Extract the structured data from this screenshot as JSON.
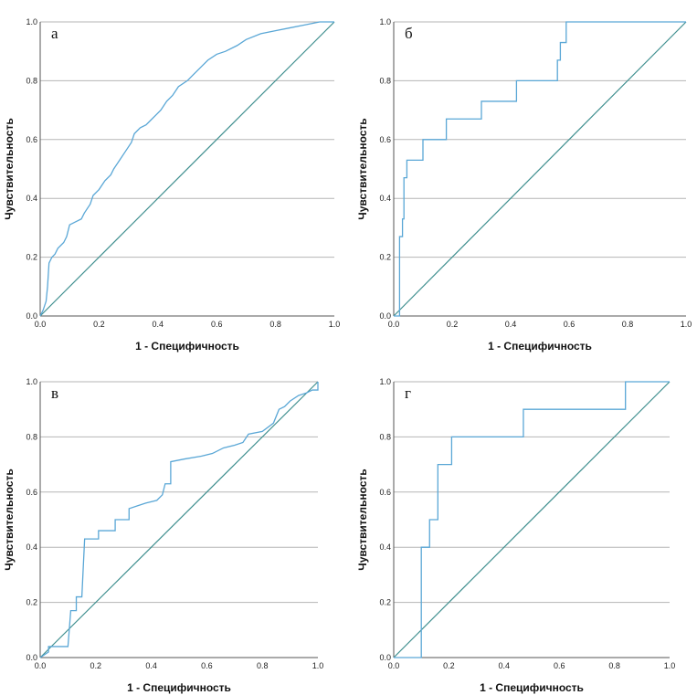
{
  "chart_data": [
    {
      "type": "line",
      "panel_label": "а",
      "xlabel": "1 - Специфичность",
      "ylabel": "Чувствительность",
      "xlim": [
        0,
        1
      ],
      "ylim": [
        0,
        1
      ],
      "xticks": [
        "0.0",
        "0.2",
        "0.4",
        "0.6",
        "0.8",
        "1.0"
      ],
      "yticks": [
        "0.0",
        "0.2",
        "0.4",
        "0.6",
        "0.8",
        "1.0"
      ],
      "grid": "horizontal",
      "reference_line": [
        [
          0,
          0
        ],
        [
          1,
          1
        ]
      ],
      "series": [
        {
          "color": "#5aa7d6",
          "points": [
            [
              0,
              0
            ],
            [
              0.01,
              0.02
            ],
            [
              0.02,
              0.05
            ],
            [
              0.025,
              0.1
            ],
            [
              0.03,
              0.18
            ],
            [
              0.04,
              0.2
            ],
            [
              0.05,
              0.21
            ],
            [
              0.06,
              0.23
            ],
            [
              0.08,
              0.25
            ],
            [
              0.09,
              0.27
            ],
            [
              0.1,
              0.31
            ],
            [
              0.12,
              0.32
            ],
            [
              0.14,
              0.33
            ],
            [
              0.15,
              0.35
            ],
            [
              0.17,
              0.38
            ],
            [
              0.18,
              0.41
            ],
            [
              0.2,
              0.43
            ],
            [
              0.22,
              0.46
            ],
            [
              0.24,
              0.48
            ],
            [
              0.25,
              0.5
            ],
            [
              0.27,
              0.53
            ],
            [
              0.29,
              0.56
            ],
            [
              0.31,
              0.59
            ],
            [
              0.32,
              0.62
            ],
            [
              0.34,
              0.64
            ],
            [
              0.36,
              0.65
            ],
            [
              0.37,
              0.66
            ],
            [
              0.39,
              0.68
            ],
            [
              0.41,
              0.7
            ],
            [
              0.43,
              0.73
            ],
            [
              0.45,
              0.75
            ],
            [
              0.47,
              0.78
            ],
            [
              0.5,
              0.8
            ],
            [
              0.52,
              0.82
            ],
            [
              0.55,
              0.85
            ],
            [
              0.57,
              0.87
            ],
            [
              0.6,
              0.89
            ],
            [
              0.63,
              0.9
            ],
            [
              0.67,
              0.92
            ],
            [
              0.7,
              0.94
            ],
            [
              0.75,
              0.96
            ],
            [
              0.8,
              0.97
            ],
            [
              0.85,
              0.98
            ],
            [
              0.9,
              0.99
            ],
            [
              0.95,
              1.0
            ],
            [
              1,
              1
            ]
          ]
        }
      ]
    },
    {
      "type": "line",
      "panel_label": "б",
      "xlabel": "1 - Специфичность",
      "ylabel": "Чувствительность",
      "xlim": [
        0,
        1
      ],
      "ylim": [
        0,
        1
      ],
      "xticks": [
        "0.0",
        "0.2",
        "0.4",
        "0.6",
        "0.8",
        "1.0"
      ],
      "yticks": [
        "0.0",
        "0.2",
        "0.4",
        "0.6",
        "0.8",
        "1.0"
      ],
      "grid": "horizontal",
      "reference_line": [
        [
          0,
          0
        ],
        [
          1,
          1
        ]
      ],
      "series": [
        {
          "color": "#5aa7d6",
          "points": [
            [
              0,
              0
            ],
            [
              0.02,
              0.0
            ],
            [
              0.02,
              0.27
            ],
            [
              0.03,
              0.27
            ],
            [
              0.03,
              0.33
            ],
            [
              0.035,
              0.33
            ],
            [
              0.035,
              0.47
            ],
            [
              0.045,
              0.47
            ],
            [
              0.045,
              0.53
            ],
            [
              0.1,
              0.53
            ],
            [
              0.1,
              0.6
            ],
            [
              0.18,
              0.6
            ],
            [
              0.18,
              0.67
            ],
            [
              0.3,
              0.67
            ],
            [
              0.3,
              0.73
            ],
            [
              0.42,
              0.73
            ],
            [
              0.42,
              0.8
            ],
            [
              0.56,
              0.8
            ],
            [
              0.56,
              0.87
            ],
            [
              0.57,
              0.87
            ],
            [
              0.57,
              0.93
            ],
            [
              0.59,
              0.93
            ],
            [
              0.59,
              1.0
            ],
            [
              1,
              1
            ]
          ]
        }
      ]
    },
    {
      "type": "line",
      "panel_label": "в",
      "xlabel": "1 - Специфичность",
      "ylabel": "Чувствительность",
      "xlim": [
        0,
        1
      ],
      "ylim": [
        0,
        1
      ],
      "xticks": [
        "0.0",
        "0.2",
        "0.4",
        "0.6",
        "0.8",
        "1.0"
      ],
      "yticks": [
        "0.0",
        "0.2",
        "0.4",
        "0.6",
        "0.8",
        "1.0"
      ],
      "grid": "horizontal",
      "reference_line": [
        [
          0,
          0
        ],
        [
          1,
          1
        ]
      ],
      "series": [
        {
          "color": "#5aa7d6",
          "points": [
            [
              0,
              0
            ],
            [
              0.03,
              0.02
            ],
            [
              0.03,
              0.04
            ],
            [
              0.1,
              0.04
            ],
            [
              0.11,
              0.17
            ],
            [
              0.13,
              0.17
            ],
            [
              0.13,
              0.22
            ],
            [
              0.15,
              0.22
            ],
            [
              0.16,
              0.43
            ],
            [
              0.21,
              0.43
            ],
            [
              0.21,
              0.46
            ],
            [
              0.27,
              0.46
            ],
            [
              0.27,
              0.5
            ],
            [
              0.32,
              0.5
            ],
            [
              0.32,
              0.54
            ],
            [
              0.35,
              0.55
            ],
            [
              0.38,
              0.56
            ],
            [
              0.42,
              0.57
            ],
            [
              0.44,
              0.59
            ],
            [
              0.45,
              0.63
            ],
            [
              0.47,
              0.63
            ],
            [
              0.47,
              0.71
            ],
            [
              0.52,
              0.72
            ],
            [
              0.58,
              0.73
            ],
            [
              0.62,
              0.74
            ],
            [
              0.66,
              0.76
            ],
            [
              0.7,
              0.77
            ],
            [
              0.73,
              0.78
            ],
            [
              0.75,
              0.81
            ],
            [
              0.8,
              0.82
            ],
            [
              0.84,
              0.85
            ],
            [
              0.86,
              0.9
            ],
            [
              0.88,
              0.91
            ],
            [
              0.9,
              0.93
            ],
            [
              0.93,
              0.95
            ],
            [
              0.96,
              0.96
            ],
            [
              0.98,
              0.97
            ],
            [
              1,
              0.97
            ],
            [
              1,
              1
            ]
          ]
        }
      ]
    },
    {
      "type": "line",
      "panel_label": "г",
      "xlabel": "1 - Специфичность",
      "ylabel": "Чувствительность",
      "xlim": [
        0,
        1
      ],
      "ylim": [
        0,
        1
      ],
      "xticks": [
        "0.0",
        "0.2",
        "0.4",
        "0.6",
        "0.8",
        "1.0"
      ],
      "yticks": [
        "0.0",
        "0.2",
        "0.4",
        "0.6",
        "0.8",
        "1.0"
      ],
      "grid": "horizontal",
      "reference_line": [
        [
          0,
          0
        ],
        [
          1,
          1
        ]
      ],
      "series": [
        {
          "color": "#5aa7d6",
          "points": [
            [
              0,
              0
            ],
            [
              0.1,
              0
            ],
            [
              0.1,
              0.4
            ],
            [
              0.13,
              0.4
            ],
            [
              0.13,
              0.5
            ],
            [
              0.16,
              0.5
            ],
            [
              0.16,
              0.7
            ],
            [
              0.21,
              0.7
            ],
            [
              0.21,
              0.8
            ],
            [
              0.47,
              0.8
            ],
            [
              0.47,
              0.9
            ],
            [
              0.84,
              0.9
            ],
            [
              0.84,
              1.0
            ],
            [
              1,
              1
            ]
          ]
        }
      ]
    }
  ]
}
